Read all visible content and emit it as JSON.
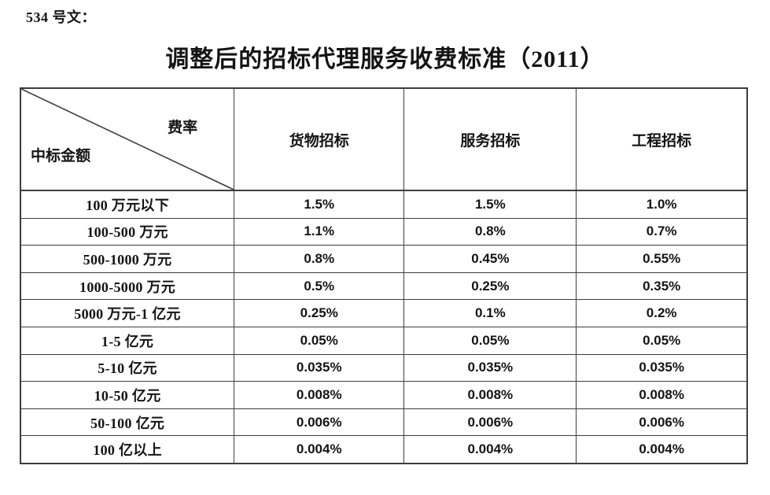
{
  "page": {
    "doc_label": "534 号文：",
    "title": "调整后的招标代理服务收费标准（2011）"
  },
  "table": {
    "corner": {
      "top_right": "费率",
      "bottom_left": "中标金额"
    },
    "columns": [
      "货物招标",
      "服务招标",
      "工程招标"
    ],
    "rows": [
      {
        "label": "100 万元以下",
        "values": [
          "1.5%",
          "1.5%",
          "1.0%"
        ]
      },
      {
        "label": "100-500 万元",
        "values": [
          "1.1%",
          "0.8%",
          "0.7%"
        ]
      },
      {
        "label": "500-1000 万元",
        "values": [
          "0.8%",
          "0.45%",
          "0.55%"
        ]
      },
      {
        "label": "1000-5000 万元",
        "values": [
          "0.5%",
          "0.25%",
          "0.35%"
        ]
      },
      {
        "label": "5000 万元-1 亿元",
        "values": [
          "0.25%",
          "0.1%",
          "0.2%"
        ]
      },
      {
        "label": "1-5 亿元",
        "values": [
          "0.05%",
          "0.05%",
          "0.05%"
        ]
      },
      {
        "label": "5-10 亿元",
        "values": [
          "0.035%",
          "0.035%",
          "0.035%"
        ]
      },
      {
        "label": "10-50 亿元",
        "values": [
          "0.008%",
          "0.008%",
          "0.008%"
        ]
      },
      {
        "label": "50-100 亿元",
        "values": [
          "0.006%",
          "0.006%",
          "0.006%"
        ]
      },
      {
        "label": "100 亿以上",
        "values": [
          "0.004%",
          "0.004%",
          "0.004%"
        ]
      }
    ]
  },
  "colors": {
    "border": "#3d3d3d",
    "text": "#141414",
    "background": "#ffffff"
  }
}
